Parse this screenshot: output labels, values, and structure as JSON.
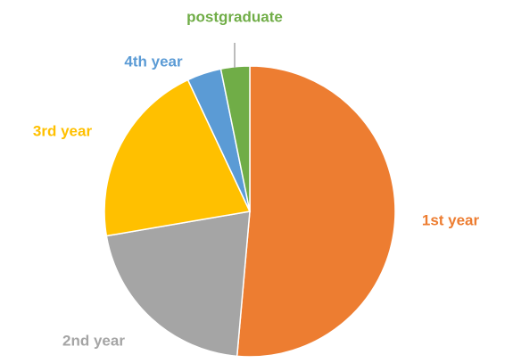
{
  "chart_data": {
    "type": "pie",
    "categories": [
      "1st year",
      "2nd year",
      "3rd year",
      "4th year",
      "postgraduate"
    ],
    "values": [
      51.4,
      20.9,
      20.7,
      3.8,
      3.2
    ],
    "colors": [
      "#ed7d31",
      "#a5a5a5",
      "#ffc000",
      "#5b9bd5",
      "#70ad47"
    ]
  }
}
